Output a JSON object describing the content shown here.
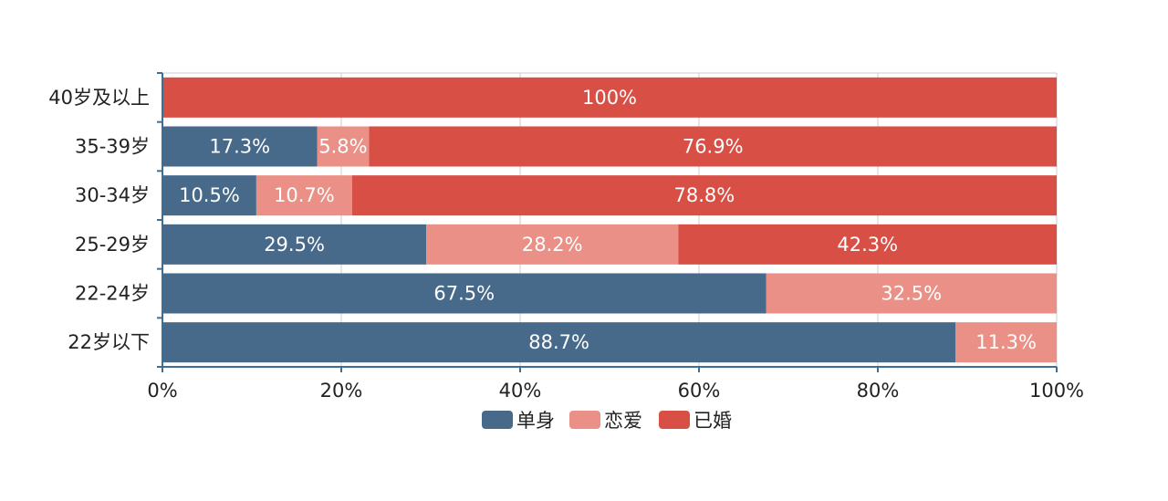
{
  "chart_data": {
    "type": "bar",
    "orientation": "horizontal",
    "stacked": true,
    "categories": [
      "40岁及以上",
      "35-39岁",
      "30-34岁",
      "25-29岁",
      "22-24岁",
      "22岁以下"
    ],
    "series": [
      {
        "name": "单身",
        "color": "#476a8a",
        "values": [
          0,
          17.3,
          10.5,
          29.5,
          67.5,
          88.7
        ],
        "labels": [
          "",
          "17.3%",
          "10.5%",
          "29.5%",
          "67.5%",
          "88.7%"
        ]
      },
      {
        "name": "恋爱",
        "color": "#ea9087",
        "values": [
          0,
          5.8,
          10.7,
          28.2,
          32.5,
          11.3
        ],
        "labels": [
          "",
          "5.8%",
          "10.7%",
          "28.2%",
          "32.5%",
          "11.3%"
        ]
      },
      {
        "name": "已婚",
        "color": "#d84f45",
        "values": [
          100,
          76.9,
          78.8,
          42.3,
          0,
          0
        ],
        "labels": [
          "100%",
          "76.9%",
          "78.8%",
          "42.3%",
          "",
          ""
        ]
      }
    ],
    "xlim": [
      0,
      100
    ],
    "xticks": [
      "0%",
      "20%",
      "40%",
      "60%",
      "80%",
      "100%"
    ],
    "grid": true,
    "legend_position": "bottom"
  }
}
